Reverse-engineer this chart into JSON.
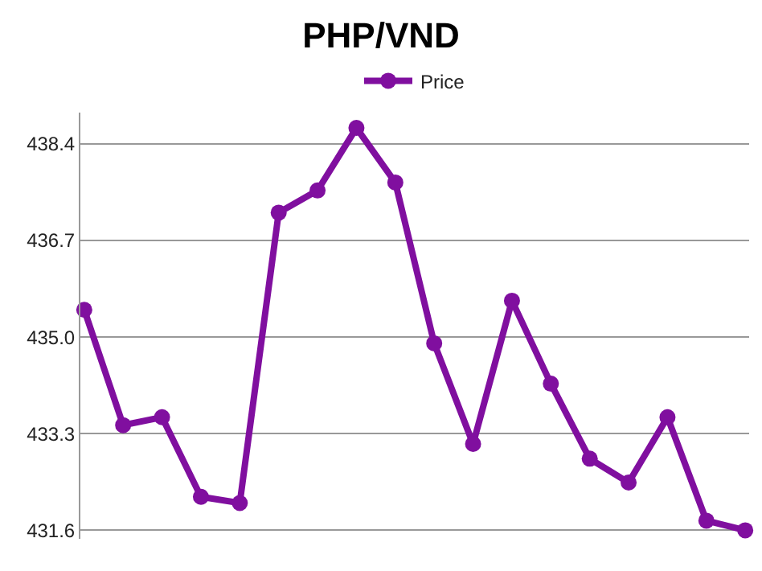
{
  "chart_data": {
    "type": "line",
    "title": "PHP/VND",
    "categories": [
      null,
      null,
      null,
      null,
      null,
      null,
      null,
      null,
      null,
      null,
      null,
      null,
      null,
      null,
      null,
      null,
      null,
      null
    ],
    "series": [
      {
        "name": "Price",
        "color": "#800f9f",
        "values": [
          435.48,
          433.45,
          433.59,
          432.19,
          432.08,
          437.19,
          437.58,
          438.68,
          437.72,
          434.89,
          433.12,
          435.64,
          434.18,
          432.86,
          432.44,
          433.59,
          431.77,
          431.6
        ]
      }
    ],
    "ylim": [
      431.45,
      438.95
    ],
    "yticks": [
      {
        "value": 431.6,
        "label": "431.6"
      },
      {
        "value": 433.3,
        "label": "433.3"
      },
      {
        "value": 435,
        "label": "435.0"
      },
      {
        "value": 436.7,
        "label": "436.7"
      },
      {
        "value": 438.4,
        "label": "438.4"
      }
    ],
    "grid": "y",
    "legend": "top",
    "marker": "circle",
    "line_style": "solid",
    "tick_labels": "y"
  }
}
